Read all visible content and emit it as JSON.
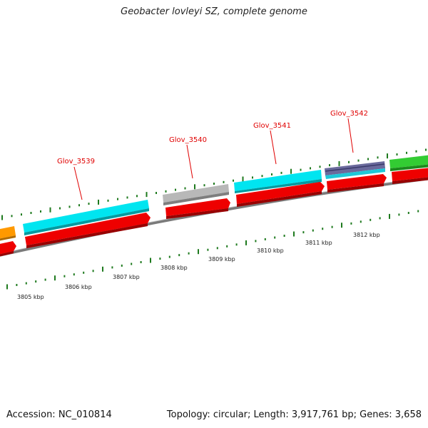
{
  "title": "Geobacter lovleyi SZ, complete genome",
  "footer": {
    "accession": "Accession: NC_010814",
    "summary": "Topology: circular; Length: 3,917,761 bp; Genes: 3,658"
  },
  "colors": {
    "cds_cyan": "#00e5f0",
    "cds_red": "#ee0000",
    "cds_gray": "#b8b8b8",
    "cds_purple": "#6a6a9c",
    "cds_green": "#33cc33",
    "cds_orange": "#ff9900",
    "backbone": "#7a7a7a",
    "tick": "#1e7a1e",
    "label": "#e00000"
  },
  "gene_labels": [
    "Glov_3539",
    "Glov_3540",
    "Glov_3541",
    "Glov_3542"
  ],
  "kbp_labels": [
    "3805 kbp",
    "3806 kbp",
    "3807 kbp",
    "3808 kbp",
    "3809 kbp",
    "3810 kbp",
    "3811 kbp",
    "3812 kbp"
  ]
}
